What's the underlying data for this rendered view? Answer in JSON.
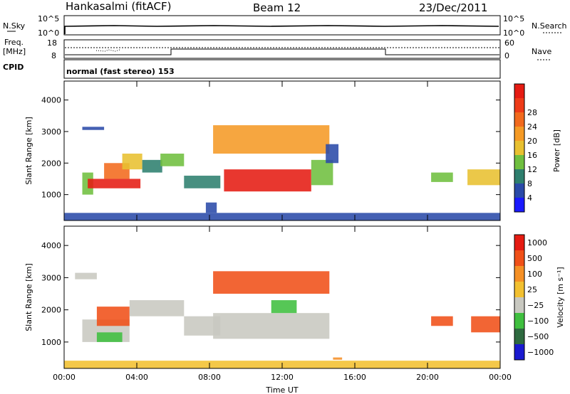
{
  "header": {
    "station": "Hankasalmi (fitACF)",
    "beam": "Beam 12",
    "date": "23/Dec/2011"
  },
  "noise_panel": {
    "left_label": "N.Sky",
    "right_label": "N.Search",
    "ticks_top": "10^5",
    "ticks_bottom": "10^0"
  },
  "freq_panel": {
    "left_label_1": "Freq.",
    "left_label_2": "[MHz]",
    "left_tick_top": "18",
    "left_tick_bottom": "8",
    "right_label": "Nave",
    "right_tick_top": "60",
    "right_tick_bottom": "0"
  },
  "cpid": {
    "label": "CPID",
    "value": "normal (fast stereo) 153"
  },
  "chart_data": [
    {
      "type": "heatmap",
      "title": "",
      "ylabel": "Slant Range [km]",
      "xlabel": "",
      "x_ticks": [
        "00:00",
        "04:00",
        "08:00",
        "12:00",
        "16:00",
        "20:00",
        "00:00"
      ],
      "y_ticks": [
        "1000",
        "2000",
        "3000",
        "4000"
      ],
      "xlim_hours": [
        0,
        24
      ],
      "ylim_km": [
        180,
        4600
      ],
      "colorbar": {
        "label": "Power [dB]",
        "ticks": [
          "4",
          "8",
          "12",
          "16",
          "20",
          "24",
          "28"
        ],
        "colors": [
          "#1a1aff",
          "#2a4aa8",
          "#2e7f6e",
          "#6fbf3f",
          "#e8c030",
          "#f59a25",
          "#f26a1d",
          "#ee3b18",
          "#e51b12"
        ]
      },
      "regions": [
        {
          "t0": 0.0,
          "t1": 24.0,
          "r0": 180,
          "r1": 420,
          "c": 1
        },
        {
          "t0": 1.0,
          "t1": 2.2,
          "r0": 3050,
          "r1": 3150,
          "c": 1
        },
        {
          "t0": 1.0,
          "t1": 1.6,
          "r0": 1000,
          "r1": 1700,
          "c": 3
        },
        {
          "t0": 1.3,
          "t1": 4.2,
          "r0": 1200,
          "r1": 1500,
          "c": 8
        },
        {
          "t0": 2.2,
          "t1": 3.6,
          "r0": 1500,
          "r1": 2000,
          "c": 6
        },
        {
          "t0": 3.2,
          "t1": 4.3,
          "r0": 1800,
          "r1": 2300,
          "c": 4
        },
        {
          "t0": 4.3,
          "t1": 5.4,
          "r0": 1700,
          "r1": 2100,
          "c": 2
        },
        {
          "t0": 5.3,
          "t1": 6.6,
          "r0": 1900,
          "r1": 2300,
          "c": 3
        },
        {
          "t0": 6.6,
          "t1": 8.6,
          "r0": 1200,
          "r1": 1600,
          "c": 2
        },
        {
          "t0": 7.8,
          "t1": 8.4,
          "r0": 420,
          "r1": 750,
          "c": 1
        },
        {
          "t0": 8.2,
          "t1": 14.6,
          "r0": 2300,
          "r1": 3200,
          "c": 5
        },
        {
          "t0": 8.8,
          "t1": 13.6,
          "r0": 1100,
          "r1": 1800,
          "c": 8
        },
        {
          "t0": 13.6,
          "t1": 14.8,
          "r0": 1300,
          "r1": 2100,
          "c": 3
        },
        {
          "t0": 14.4,
          "t1": 15.1,
          "r0": 2000,
          "r1": 2600,
          "c": 1
        },
        {
          "t0": 20.2,
          "t1": 21.4,
          "r0": 1400,
          "r1": 1700,
          "c": 3
        },
        {
          "t0": 22.2,
          "t1": 24.0,
          "r0": 1300,
          "r1": 1800,
          "c": 4
        }
      ]
    },
    {
      "type": "heatmap",
      "title": "",
      "ylabel": "Slant Range [km]",
      "xlabel": "Time UT",
      "x_ticks": [
        "00:00",
        "04:00",
        "08:00",
        "12:00",
        "16:00",
        "20:00",
        "00:00"
      ],
      "y_ticks": [
        "1000",
        "2000",
        "3000",
        "4000"
      ],
      "xlim_hours": [
        0,
        24
      ],
      "ylim_km": [
        180,
        4600
      ],
      "colorbar": {
        "label": "Velocity [m s⁻¹]",
        "ticks": [
          "1000",
          "500",
          "100",
          "25",
          "−25",
          "−100",
          "−500",
          "−1000"
        ],
        "colors": [
          "#1a1ad0",
          "#2e6a40",
          "#3fbf3f",
          "#c8c8c0",
          "#f2c030",
          "#f59025",
          "#f05018",
          "#e51b12"
        ]
      },
      "regions": [
        {
          "t0": 0.0,
          "t1": 24.0,
          "r0": 180,
          "r1": 420,
          "c": 4
        },
        {
          "t0": 0.6,
          "t1": 1.8,
          "r0": 2950,
          "r1": 3150,
          "c": 3
        },
        {
          "t0": 1.0,
          "t1": 3.6,
          "r0": 1000,
          "r1": 1700,
          "c": 3
        },
        {
          "t0": 1.8,
          "t1": 3.2,
          "r0": 1000,
          "r1": 1300,
          "c": 2
        },
        {
          "t0": 1.8,
          "t1": 3.6,
          "r0": 1500,
          "r1": 2100,
          "c": 6
        },
        {
          "t0": 3.6,
          "t1": 6.6,
          "r0": 1800,
          "r1": 2300,
          "c": 3
        },
        {
          "t0": 6.6,
          "t1": 8.6,
          "r0": 1200,
          "r1": 1800,
          "c": 3
        },
        {
          "t0": 8.2,
          "t1": 14.6,
          "r0": 1100,
          "r1": 1900,
          "c": 3
        },
        {
          "t0": 8.2,
          "t1": 14.6,
          "r0": 2500,
          "r1": 3200,
          "c": 6
        },
        {
          "t0": 11.4,
          "t1": 12.8,
          "r0": 1900,
          "r1": 2300,
          "c": 2
        },
        {
          "t0": 14.8,
          "t1": 15.3,
          "r0": 450,
          "r1": 520,
          "c": 5
        },
        {
          "t0": 20.2,
          "t1": 21.4,
          "r0": 1500,
          "r1": 1800,
          "c": 6
        },
        {
          "t0": 22.4,
          "t1": 24.0,
          "r0": 1300,
          "r1": 1800,
          "c": 6
        }
      ]
    }
  ]
}
